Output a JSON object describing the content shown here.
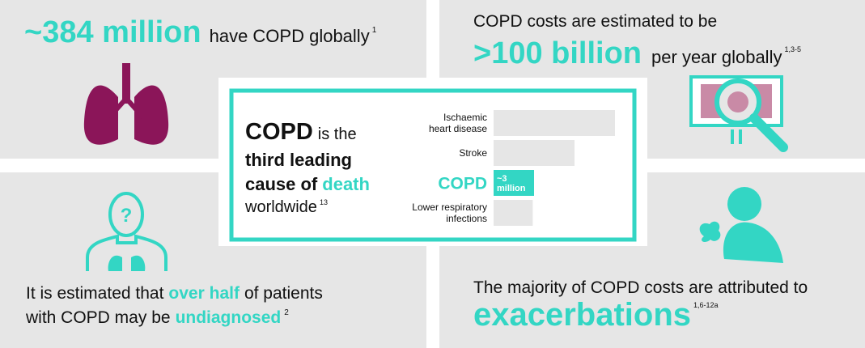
{
  "prevalence": {
    "highlight": "~384 million",
    "text": "have COPD globally",
    "ref": "1"
  },
  "cost": {
    "intro": "COPD costs are estimated to be",
    "highlight": ">100 billion",
    "text": "per year globally",
    "ref": "1,3-5"
  },
  "undiagnosed": {
    "line1": [
      "It is estimated that",
      "over half",
      "of patients"
    ],
    "line2": [
      "with COPD may be",
      "undiagnosed"
    ],
    "ref": "2"
  },
  "exacerbations": {
    "intro": "The majority of COPD costs are attributed to",
    "highlight": "exacerbations",
    "ref": "1,6-12a"
  },
  "death": {
    "subject": "COPD",
    "line1": "is the",
    "line2": "third leading",
    "line3": [
      "cause of",
      "death"
    ],
    "line4": "worldwide",
    "ref": "13",
    "chart": {
      "categories": [
        [
          "Ischaemic",
          "heart disease"
        ],
        [
          "Stroke"
        ],
        [
          "COPD"
        ],
        [
          "Lower respiratory",
          "infections"
        ]
      ],
      "values": [
        9,
        6,
        3,
        2.9
      ],
      "value_labels": [
        null,
        null,
        [
          "~3",
          "million"
        ],
        null
      ]
    }
  }
}
